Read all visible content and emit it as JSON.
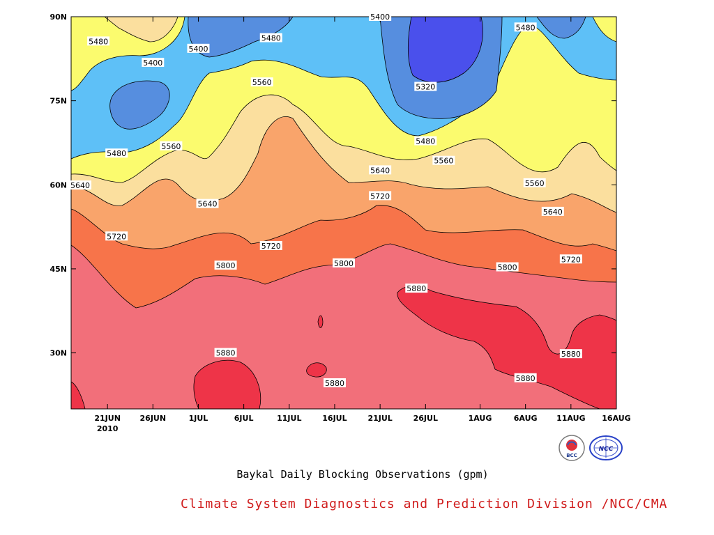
{
  "chart_data": {
    "type": "heatmap",
    "title": "",
    "xlabel": "",
    "ylabel": "",
    "x_ticks": [
      "21JUN",
      "26JUN",
      "1JUL",
      "6JUL",
      "11JUL",
      "16JUL",
      "21JUL",
      "26JUL",
      "1AUG",
      "6AUG",
      "11AUG",
      "16AUG"
    ],
    "x_year_label": "2010",
    "x_range": [
      "17JUN2010",
      "16AUG2010"
    ],
    "y_ticks": [
      "30N",
      "45N",
      "60N",
      "75N",
      "90N"
    ],
    "y_range": [
      20,
      90
    ],
    "unit": "gpm",
    "contour_levels": [
      5320,
      5400,
      5480,
      5560,
      5640,
      5720,
      5800,
      5880
    ],
    "contour_labels": [
      {
        "date": "20JUN",
        "lat": 85.6,
        "value": "5480"
      },
      {
        "date": "26JUN",
        "lat": 81.8,
        "value": "5400"
      },
      {
        "date": "1JUL",
        "lat": 84.3,
        "value": "5400"
      },
      {
        "date": "9JUL",
        "lat": 86.2,
        "value": "5480"
      },
      {
        "date": "21JUL",
        "lat": 90.0,
        "value": "5400"
      },
      {
        "date": "26JUL",
        "lat": 77.5,
        "value": "5320"
      },
      {
        "date": "6AUG",
        "lat": 88.1,
        "value": "5480"
      },
      {
        "date": "8JUL",
        "lat": 78.3,
        "value": "5560"
      },
      {
        "date": "22JUN",
        "lat": 65.6,
        "value": "5480"
      },
      {
        "date": "28JUN",
        "lat": 66.9,
        "value": "5560"
      },
      {
        "date": "18JUN",
        "lat": 59.9,
        "value": "5640"
      },
      {
        "date": "2JUL",
        "lat": 56.6,
        "value": "5640"
      },
      {
        "date": "21JUL",
        "lat": 62.6,
        "value": "5640"
      },
      {
        "date": "26JUL",
        "lat": 67.8,
        "value": "5480"
      },
      {
        "date": "28JUL",
        "lat": 64.3,
        "value": "5560"
      },
      {
        "date": "7AUG",
        "lat": 60.3,
        "value": "5560"
      },
      {
        "date": "9AUG",
        "lat": 55.2,
        "value": "5640"
      },
      {
        "date": "21JUL",
        "lat": 58.0,
        "value": "5720"
      },
      {
        "date": "22JUN",
        "lat": 50.8,
        "value": "5720"
      },
      {
        "date": "9JUL",
        "lat": 49.1,
        "value": "5720"
      },
      {
        "date": "11AUG",
        "lat": 46.7,
        "value": "5720"
      },
      {
        "date": "4JUL",
        "lat": 45.6,
        "value": "5800"
      },
      {
        "date": "17JUL",
        "lat": 46.0,
        "value": "5800"
      },
      {
        "date": "4AUG",
        "lat": 45.3,
        "value": "5800"
      },
      {
        "date": "25JUL",
        "lat": 41.5,
        "value": "5880"
      },
      {
        "date": "4JUL",
        "lat": 30.0,
        "value": "5880"
      },
      {
        "date": "16JUL",
        "lat": 24.6,
        "value": "5880"
      },
      {
        "date": "6AUG",
        "lat": 25.5,
        "value": "5880"
      },
      {
        "date": "11AUG",
        "lat": 29.8,
        "value": "5880"
      }
    ],
    "colors": {
      "below_5320": "#4a50ec",
      "5320_5400": "#568edf",
      "5400_5480": "#5ec0f7",
      "5480_5560": "#fbfb6e",
      "5560_5640": "#fbdf9e",
      "5640_5720": "#f9a46b",
      "5720_5800": "#f7744a",
      "5800_5880": "#f26f7a",
      "above_5880": "#ee3448"
    },
    "grid": false,
    "legend": "none"
  },
  "caption": "Baykal Daily Blocking Observations (gpm)",
  "credit": "Climate System Diagnostics and Prediction Division /NCC/CMA",
  "logos": [
    {
      "name": "bcc-logo",
      "text": "BCC"
    },
    {
      "name": "ncc-logo",
      "text": "NCC"
    }
  ]
}
